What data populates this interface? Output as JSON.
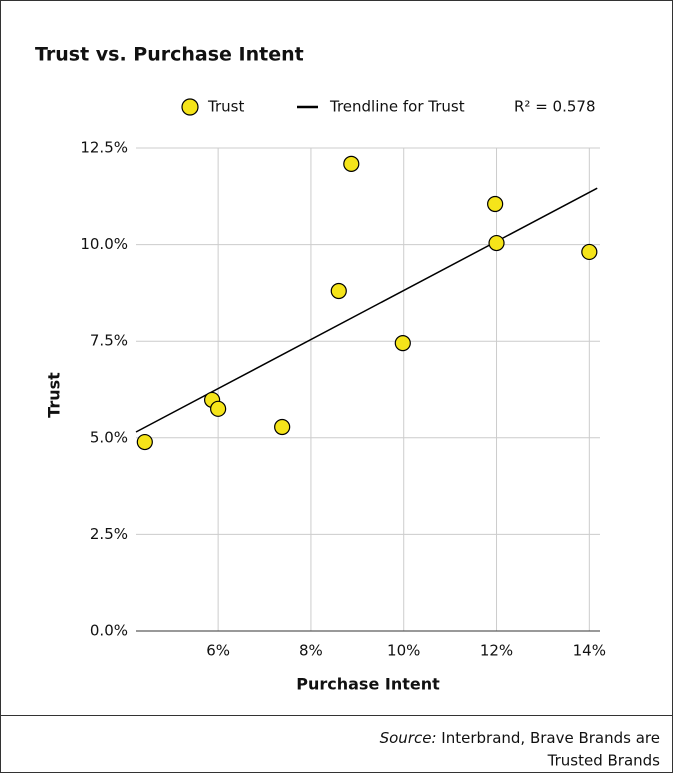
{
  "chart_data": {
    "type": "scatter",
    "title": "Trust vs. Purchase Intent",
    "xlabel": "Purchase Intent",
    "ylabel": "Trust",
    "series": [
      {
        "name": "Trust",
        "color": "#f5e41a",
        "x": [
          4.42,
          5.87,
          6.0,
          7.38,
          8.6,
          8.87,
          9.98,
          11.97,
          12.0,
          14.0
        ],
        "values": [
          4.89,
          5.98,
          5.75,
          5.28,
          8.8,
          12.09,
          7.45,
          11.05,
          10.04,
          9.81
        ]
      }
    ],
    "trendline": {
      "name": "Trendline for Trust",
      "color": "#000000",
      "x": [
        4.23,
        14.17
      ],
      "values": [
        5.15,
        11.46
      ],
      "r2_label": "R² = 0.578"
    },
    "xlim": [
      4.23,
      14.23
    ],
    "ylim": [
      0,
      12.5
    ],
    "xticks": [
      {
        "value": 6,
        "label": "6%"
      },
      {
        "value": 8,
        "label": "8%"
      },
      {
        "value": 10,
        "label": "10%"
      },
      {
        "value": 12,
        "label": "12%"
      },
      {
        "value": 14,
        "label": "14%"
      }
    ],
    "yticks": [
      {
        "value": 0,
        "label": "0.0%"
      },
      {
        "value": 2.5,
        "label": "2.5%"
      },
      {
        "value": 5,
        "label": "5.0%"
      },
      {
        "value": 7.5,
        "label": "7.5%"
      },
      {
        "value": 10,
        "label": "10.0%"
      },
      {
        "value": 12.5,
        "label": "12.5%"
      }
    ],
    "grid": true,
    "source_label": "Source:",
    "source_line1": "Interbrand, Brave Brands are",
    "source_line2": "Trusted Brands"
  }
}
